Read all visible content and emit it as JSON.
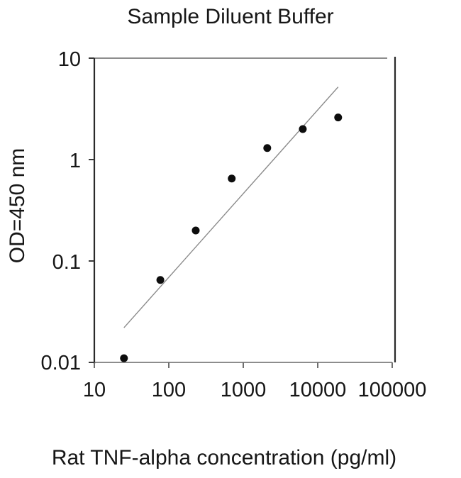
{
  "chart_data": {
    "type": "scatter",
    "title": "Sample Diluent Buffer",
    "xlabel": "Rat TNF-alpha concentration (pg/ml)",
    "ylabel": "OD=450 nm",
    "x_scale": "log",
    "y_scale": "log",
    "xlim": [
      10,
      100000
    ],
    "ylim": [
      0.01,
      10
    ],
    "x_tick_labels": [
      "10",
      "100",
      "1000",
      "10000",
      "100000"
    ],
    "y_tick_labels": [
      "10",
      "1",
      "0.1",
      "0.01"
    ],
    "grid": false,
    "legend": false,
    "series": [
      {
        "name": "standards",
        "type": "scatter",
        "marker": "filled-circle",
        "color": "#0d0d0d",
        "x": [
          25,
          77,
          230,
          700,
          2100,
          6300,
          18800
        ],
        "y": [
          0.011,
          0.065,
          0.2,
          0.65,
          1.3,
          2.0,
          2.6
        ]
      },
      {
        "name": "fit-line",
        "type": "line",
        "color": "#8a8a8a",
        "x": [
          25,
          18800
        ],
        "y": [
          0.022,
          5.2
        ]
      }
    ]
  },
  "colors": {
    "background": "#ffffff",
    "text": "#161616",
    "axis_dark": "#2a2a2a",
    "axis_gray": "#8d8d8d",
    "x_tick": "#6f6f6f",
    "y_tick": "#3a3a3a",
    "marker": "#0d0d0d",
    "fit_line": "#8a8a8a"
  }
}
